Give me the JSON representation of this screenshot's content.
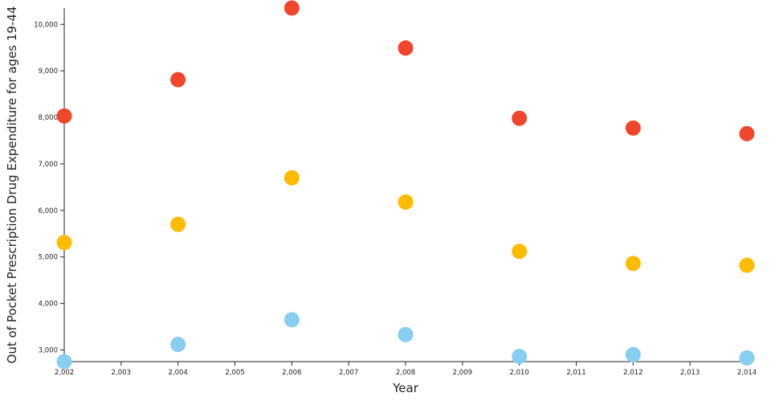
{
  "chart_data": {
    "type": "scatter",
    "title": "",
    "xlabel": "Year",
    "ylabel": "Out of Pocket Prescription Drug Expenditure for ages 19-44",
    "x": [
      2002,
      2004,
      2006,
      2008,
      2010,
      2012,
      2014
    ],
    "xlim": [
      2002,
      2014
    ],
    "ylim": [
      2750,
      10350
    ],
    "x_ticks": [
      2002,
      2003,
      2004,
      2005,
      2006,
      2007,
      2008,
      2009,
      2010,
      2011,
      2012,
      2013,
      2014
    ],
    "x_tick_labels": [
      "2,002",
      "2,003",
      "2,004",
      "2,005",
      "2,006",
      "2,007",
      "2,008",
      "2,009",
      "2,010",
      "2,011",
      "2,012",
      "2,013",
      "2,014"
    ],
    "y_ticks": [
      3000,
      4000,
      5000,
      6000,
      7000,
      8000,
      9000,
      10000
    ],
    "y_tick_labels": [
      "3,000",
      "4,000",
      "5,000",
      "6,000",
      "7,000",
      "8,000",
      "9,000",
      "10,000"
    ],
    "grid": false,
    "legend": "none",
    "series": [
      {
        "color": "#f0462b",
        "values": [
          8030,
          8810,
          10350,
          9490,
          7980,
          7770,
          7650
        ]
      },
      {
        "color": "#ffbb00",
        "values": [
          5310,
          5700,
          6700,
          6180,
          5120,
          4860,
          4820
        ]
      },
      {
        "color": "#87cef0",
        "values": [
          2750,
          3120,
          3650,
          3330,
          2860,
          2900,
          2830
        ]
      }
    ]
  }
}
